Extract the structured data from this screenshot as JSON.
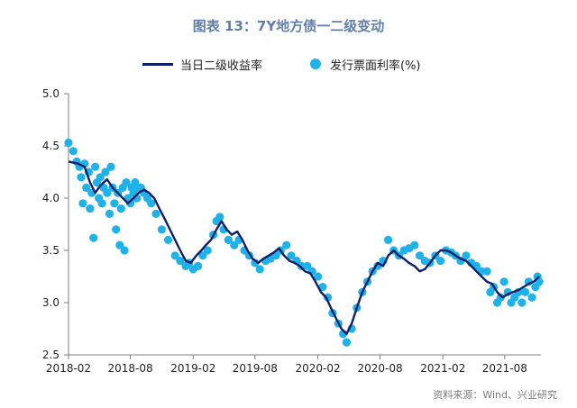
{
  "title": "图表 13：7Y地方债一二级变动",
  "source": "资料来源：Wind、兴业研究",
  "colors": {
    "line": "#10206a",
    "dots": "#1fb2e8",
    "axis": "#7f7f7f",
    "title": "#5f7ea9"
  },
  "chart_data": {
    "type": "line",
    "title": "图表 13：7Y地方债一二级变动",
    "xlabel": "",
    "ylabel": "",
    "x_ticks": [
      "2018-02",
      "2018-08",
      "2019-02",
      "2019-08",
      "2020-02",
      "2020-08",
      "2021-02",
      "2021-08"
    ],
    "x_range": [
      "2018-02-01",
      "2021-11-15"
    ],
    "y_ticks": [
      2.5,
      3.0,
      3.5,
      4.0,
      4.5,
      5.0
    ],
    "ylim": [
      2.5,
      5.0
    ],
    "grid": false,
    "legend_position": "top",
    "series": [
      {
        "name": "当日二级收益率",
        "type": "line",
        "x": [
          "2018-02-01",
          "2018-03-01",
          "2018-03-20",
          "2018-04-05",
          "2018-04-20",
          "2018-05-05",
          "2018-05-25",
          "2018-06-10",
          "2018-06-25",
          "2018-07-10",
          "2018-07-25",
          "2018-08-10",
          "2018-08-25",
          "2018-09-10",
          "2018-09-25",
          "2018-10-10",
          "2018-10-25",
          "2018-11-10",
          "2018-11-25",
          "2018-12-10",
          "2018-12-25",
          "2019-01-10",
          "2019-01-25",
          "2019-02-10",
          "2019-02-25",
          "2019-03-10",
          "2019-03-25",
          "2019-04-10",
          "2019-04-25",
          "2019-05-10",
          "2019-05-25",
          "2019-06-10",
          "2019-06-25",
          "2019-07-10",
          "2019-07-25",
          "2019-08-10",
          "2019-08-25",
          "2019-09-10",
          "2019-09-25",
          "2019-10-10",
          "2019-10-25",
          "2019-11-10",
          "2019-11-25",
          "2019-12-10",
          "2019-12-25",
          "2020-01-10",
          "2020-01-25",
          "2020-02-10",
          "2020-02-25",
          "2020-03-10",
          "2020-03-25",
          "2020-04-10",
          "2020-04-25",
          "2020-05-10",
          "2020-05-25",
          "2020-06-10",
          "2020-06-25",
          "2020-07-10",
          "2020-07-25",
          "2020-08-10",
          "2020-08-25",
          "2020-09-10",
          "2020-09-25",
          "2020-10-10",
          "2020-10-25",
          "2020-11-10",
          "2020-11-25",
          "2020-12-10",
          "2020-12-25",
          "2021-01-10",
          "2021-01-25",
          "2021-02-10",
          "2021-02-25",
          "2021-03-10",
          "2021-03-25",
          "2021-04-10",
          "2021-04-25",
          "2021-05-10",
          "2021-05-25",
          "2021-06-10",
          "2021-06-25",
          "2021-07-10",
          "2021-07-25",
          "2021-08-10",
          "2021-08-25",
          "2021-09-10",
          "2021-09-25",
          "2021-10-10",
          "2021-10-25",
          "2021-11-10"
        ],
        "values": [
          4.35,
          4.33,
          4.3,
          4.15,
          4.05,
          4.12,
          4.18,
          4.1,
          4.05,
          4.0,
          3.95,
          4.0,
          4.05,
          4.08,
          4.05,
          4.0,
          3.9,
          3.8,
          3.7,
          3.6,
          3.5,
          3.4,
          3.38,
          3.45,
          3.5,
          3.55,
          3.6,
          3.7,
          3.78,
          3.7,
          3.65,
          3.68,
          3.6,
          3.5,
          3.42,
          3.38,
          3.42,
          3.45,
          3.48,
          3.52,
          3.45,
          3.4,
          3.38,
          3.35,
          3.3,
          3.28,
          3.2,
          3.1,
          3.05,
          2.95,
          2.85,
          2.75,
          2.7,
          2.8,
          2.95,
          3.1,
          3.2,
          3.3,
          3.38,
          3.35,
          3.45,
          3.5,
          3.45,
          3.42,
          3.38,
          3.35,
          3.3,
          3.32,
          3.38,
          3.45,
          3.5,
          3.5,
          3.48,
          3.45,
          3.42,
          3.4,
          3.35,
          3.3,
          3.25,
          3.2,
          3.18,
          3.1,
          3.05,
          3.08,
          3.1,
          3.12,
          3.15,
          3.18,
          3.2,
          3.25
        ]
      },
      {
        "name": "发行票面利率(%)",
        "type": "scatter",
        "x": [
          "2018-02-01",
          "2018-02-15",
          "2018-02-25",
          "2018-03-05",
          "2018-03-10",
          "2018-03-15",
          "2018-03-20",
          "2018-03-25",
          "2018-04-01",
          "2018-04-05",
          "2018-04-10",
          "2018-04-15",
          "2018-04-20",
          "2018-04-25",
          "2018-05-01",
          "2018-05-05",
          "2018-05-10",
          "2018-05-15",
          "2018-05-20",
          "2018-05-25",
          "2018-06-01",
          "2018-06-05",
          "2018-06-10",
          "2018-06-15",
          "2018-06-20",
          "2018-06-25",
          "2018-07-01",
          "2018-07-05",
          "2018-07-10",
          "2018-07-15",
          "2018-07-20",
          "2018-07-25",
          "2018-08-01",
          "2018-08-05",
          "2018-08-10",
          "2018-08-15",
          "2018-08-20",
          "2018-08-25",
          "2018-09-01",
          "2018-09-10",
          "2018-09-20",
          "2018-10-01",
          "2018-10-15",
          "2018-11-01",
          "2018-11-20",
          "2018-12-10",
          "2018-12-25",
          "2019-01-10",
          "2019-01-20",
          "2019-02-01",
          "2019-02-15",
          "2019-03-01",
          "2019-03-15",
          "2019-04-01",
          "2019-04-10",
          "2019-04-20",
          "2019-05-01",
          "2019-05-15",
          "2019-06-01",
          "2019-06-15",
          "2019-07-01",
          "2019-07-15",
          "2019-08-01",
          "2019-08-15",
          "2019-09-01",
          "2019-09-15",
          "2019-10-01",
          "2019-10-15",
          "2019-11-01",
          "2019-11-15",
          "2019-12-01",
          "2019-12-15",
          "2020-01-01",
          "2020-01-15",
          "2020-02-01",
          "2020-02-15",
          "2020-03-01",
          "2020-03-15",
          "2020-04-01",
          "2020-04-15",
          "2020-04-25",
          "2020-05-10",
          "2020-05-25",
          "2020-06-10",
          "2020-06-25",
          "2020-07-10",
          "2020-07-25",
          "2020-08-10",
          "2020-08-25",
          "2020-09-10",
          "2020-09-25",
          "2020-10-10",
          "2020-10-25",
          "2020-11-10",
          "2020-11-25",
          "2020-12-10",
          "2020-12-25",
          "2021-01-10",
          "2021-01-25",
          "2021-02-10",
          "2021-02-25",
          "2021-03-10",
          "2021-03-25",
          "2021-04-10",
          "2021-04-25",
          "2021-05-10",
          "2021-05-25",
          "2021-06-10",
          "2021-06-20",
          "2021-06-30",
          "2021-07-10",
          "2021-07-20",
          "2021-07-30",
          "2021-08-10",
          "2021-08-20",
          "2021-08-30",
          "2021-09-10",
          "2021-09-20",
          "2021-09-30",
          "2021-10-10",
          "2021-10-20",
          "2021-10-30",
          "2021-11-05",
          "2021-11-10"
        ],
        "values": [
          4.53,
          4.45,
          4.35,
          4.3,
          4.2,
          3.95,
          4.33,
          4.1,
          4.25,
          3.9,
          4.05,
          3.62,
          4.3,
          4.15,
          4.0,
          4.2,
          3.95,
          4.1,
          4.25,
          4.05,
          3.85,
          4.3,
          4.1,
          3.95,
          3.7,
          4.05,
          3.55,
          3.9,
          4.1,
          3.5,
          4.15,
          4.0,
          3.95,
          4.1,
          4.05,
          4.15,
          4.0,
          4.1,
          4.1,
          4.05,
          4.0,
          3.95,
          3.85,
          3.7,
          3.6,
          3.45,
          3.4,
          3.35,
          3.38,
          3.32,
          3.35,
          3.45,
          3.5,
          3.65,
          3.78,
          3.82,
          3.7,
          3.6,
          3.55,
          3.6,
          3.5,
          3.45,
          3.38,
          3.32,
          3.4,
          3.42,
          3.45,
          3.5,
          3.55,
          3.45,
          3.4,
          3.35,
          3.35,
          3.3,
          3.25,
          3.15,
          3.05,
          2.9,
          2.8,
          2.7,
          2.62,
          2.75,
          2.95,
          3.1,
          3.2,
          3.3,
          3.35,
          3.4,
          3.6,
          3.5,
          3.45,
          3.5,
          3.52,
          3.55,
          3.45,
          3.4,
          3.38,
          3.45,
          3.4,
          3.5,
          3.48,
          3.45,
          3.4,
          3.45,
          3.38,
          3.35,
          3.3,
          3.3,
          3.1,
          3.15,
          3.0,
          3.05,
          3.2,
          3.1,
          3.0,
          3.05,
          3.1,
          3.0,
          3.1,
          3.2,
          3.05,
          3.15,
          3.25,
          3.2
        ]
      }
    ]
  }
}
